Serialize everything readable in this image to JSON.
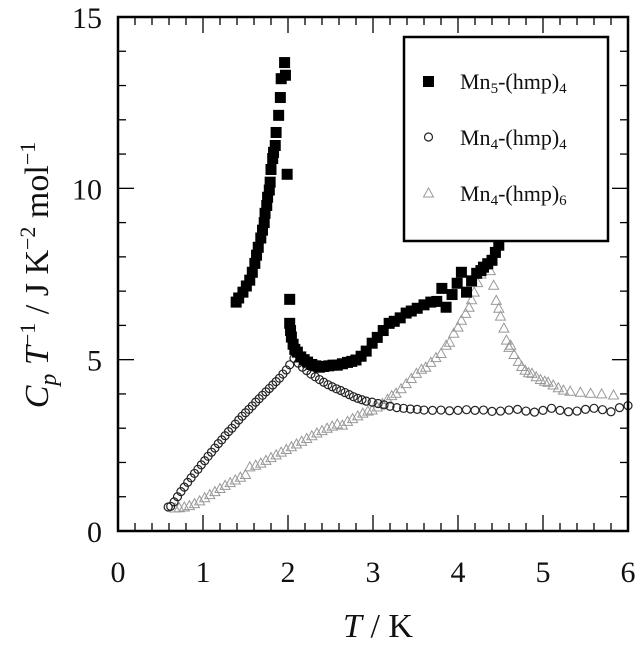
{
  "chart_data": {
    "type": "scatter",
    "title": "",
    "xlabel": {
      "symbol": "T",
      "unit": " / K"
    },
    "ylabel": {
      "symbol_c": "C",
      "sub_p": "p",
      "symbol_t": " T",
      "sup_m1": "−1",
      "rest": " / J K",
      "sup_m2": "−2",
      "mol": " mol",
      "sup_m1b": "−1"
    },
    "xlim": [
      0,
      6
    ],
    "ylim": [
      0,
      15
    ],
    "xticks": [
      "0",
      "1",
      "2",
      "3",
      "4",
      "5",
      "6"
    ],
    "yticks": [
      "0",
      "5",
      "10",
      "15"
    ],
    "grid": false,
    "legend_position": "top-right",
    "series": [
      {
        "name": "Mn5-(hmp)4",
        "legend": {
          "base": "Mn",
          "sub1": "5",
          "mid": "-(hmp)",
          "sub2": "4"
        },
        "marker": "square",
        "color": "#000000",
        "x": [
          1.39,
          1.42,
          1.47,
          1.51,
          1.55,
          1.58,
          1.61,
          1.63,
          1.65,
          1.68,
          1.7,
          1.72,
          1.73,
          1.75,
          1.76,
          1.78,
          1.79,
          1.8,
          1.82,
          1.83,
          1.85,
          1.86,
          1.89,
          1.91,
          1.92,
          1.96,
          1.97,
          1.99,
          2.02,
          2.02,
          2.03,
          2.04,
          2.06,
          2.08,
          2.11,
          2.15,
          2.19,
          2.23,
          2.28,
          2.33,
          2.37,
          2.42,
          2.48,
          2.53,
          2.58,
          2.64,
          2.7,
          2.75,
          2.8,
          2.86,
          2.92,
          2.99,
          3.05,
          3.12,
          3.19,
          3.25,
          3.32,
          3.39,
          3.45,
          3.52,
          3.6,
          3.68,
          3.75,
          3.81,
          3.86,
          3.93,
          3.99,
          4.04,
          4.1,
          4.16,
          4.22,
          4.27,
          4.3,
          4.35,
          4.4,
          4.44,
          4.48
        ],
        "y": [
          6.68,
          6.8,
          6.97,
          7.15,
          7.32,
          7.55,
          7.81,
          8.05,
          8.28,
          8.55,
          8.78,
          9.0,
          9.27,
          9.5,
          9.74,
          9.95,
          10.18,
          10.55,
          10.87,
          11.05,
          11.25,
          11.63,
          12.13,
          12.65,
          13.2,
          13.67,
          13.3,
          10.41,
          6.76,
          6.06,
          5.85,
          5.66,
          5.45,
          5.3,
          5.22,
          5.08,
          5.0,
          4.93,
          4.86,
          4.82,
          4.78,
          4.8,
          4.82,
          4.84,
          4.84,
          4.88,
          4.92,
          4.95,
          4.99,
          5.1,
          5.25,
          5.48,
          5.65,
          5.85,
          6.06,
          6.12,
          6.22,
          6.36,
          6.42,
          6.5,
          6.6,
          6.68,
          6.7,
          7.08,
          6.53,
          6.9,
          7.23,
          7.55,
          6.97,
          7.3,
          7.52,
          7.6,
          7.7,
          7.8,
          7.9,
          8.13,
          8.34
        ]
      },
      {
        "name": "Mn4-(hmp)4",
        "legend": {
          "base": "Mn",
          "sub1": "4",
          "mid": "-(hmp)",
          "sub2": "4"
        },
        "marker": "circle",
        "color": "#222222",
        "x": [
          0.59,
          0.62,
          0.66,
          0.7,
          0.74,
          0.78,
          0.82,
          0.86,
          0.9,
          0.94,
          0.98,
          1.02,
          1.06,
          1.1,
          1.14,
          1.18,
          1.22,
          1.26,
          1.3,
          1.34,
          1.38,
          1.42,
          1.46,
          1.5,
          1.54,
          1.58,
          1.62,
          1.66,
          1.7,
          1.74,
          1.78,
          1.82,
          1.86,
          1.9,
          1.94,
          1.98,
          2.02,
          2.07,
          2.12,
          2.17,
          2.22,
          2.27,
          2.32,
          2.37,
          2.42,
          2.47,
          2.52,
          2.57,
          2.62,
          2.67,
          2.72,
          2.77,
          2.82,
          2.87,
          2.92,
          2.99,
          3.06,
          3.13,
          3.2,
          3.28,
          3.36,
          3.44,
          3.52,
          3.6,
          3.7,
          3.8,
          3.9,
          4.0,
          4.1,
          4.2,
          4.3,
          4.4,
          4.5,
          4.6,
          4.7,
          4.8,
          4.9,
          5.0,
          5.1,
          5.2,
          5.3,
          5.4,
          5.5,
          5.6,
          5.7,
          5.8,
          5.9,
          6.0
        ],
        "y": [
          0.7,
          0.72,
          0.85,
          1.0,
          1.15,
          1.28,
          1.42,
          1.55,
          1.68,
          1.8,
          1.93,
          2.05,
          2.18,
          2.3,
          2.42,
          2.55,
          2.66,
          2.78,
          2.9,
          3.0,
          3.12,
          3.24,
          3.35,
          3.45,
          3.55,
          3.65,
          3.76,
          3.86,
          3.96,
          4.06,
          4.16,
          4.26,
          4.36,
          4.46,
          4.58,
          4.7,
          4.85,
          5.04,
          4.9,
          4.78,
          4.68,
          4.58,
          4.5,
          4.42,
          4.34,
          4.27,
          4.21,
          4.15,
          4.1,
          4.04,
          3.98,
          3.92,
          3.87,
          3.83,
          3.79,
          3.76,
          3.72,
          3.68,
          3.64,
          3.6,
          3.58,
          3.56,
          3.55,
          3.53,
          3.52,
          3.53,
          3.51,
          3.52,
          3.54,
          3.52,
          3.53,
          3.49,
          3.5,
          3.53,
          3.55,
          3.5,
          3.47,
          3.52,
          3.58,
          3.52,
          3.48,
          3.5,
          3.55,
          3.58,
          3.54,
          3.48,
          3.6,
          3.66
        ]
      },
      {
        "name": "Mn4-(hmp)6",
        "legend": {
          "base": "Mn",
          "sub1": "4",
          "mid": "-(hmp)",
          "sub2": "6"
        },
        "marker": "triangle",
        "color": "#999999",
        "x": [
          0.67,
          0.72,
          0.78,
          0.84,
          0.9,
          0.96,
          1.02,
          1.08,
          1.14,
          1.2,
          1.26,
          1.32,
          1.38,
          1.44,
          1.5,
          1.55,
          1.62,
          1.68,
          1.74,
          1.8,
          1.86,
          1.92,
          1.98,
          2.04,
          2.1,
          2.16,
          2.22,
          2.28,
          2.34,
          2.4,
          2.46,
          2.52,
          2.58,
          2.64,
          2.7,
          2.76,
          2.82,
          2.88,
          2.94,
          2.99,
          3.05,
          3.11,
          3.17,
          3.22,
          3.27,
          3.33,
          3.39,
          3.45,
          3.51,
          3.57,
          3.62,
          3.68,
          3.74,
          3.8,
          3.86,
          3.9,
          3.95,
          4.0,
          4.04,
          4.09,
          4.13,
          4.16,
          4.19,
          4.23,
          4.27,
          4.3,
          4.34,
          4.38,
          4.42,
          4.45,
          4.48,
          4.5,
          4.54,
          4.57,
          4.6,
          4.62,
          4.66,
          4.71,
          4.75,
          4.79,
          4.83,
          4.87,
          4.92,
          4.97,
          5.02,
          5.06,
          5.12,
          5.18,
          5.24,
          5.32,
          5.44,
          5.56,
          5.69,
          5.83
        ],
        "y": [
          0.67,
          0.68,
          0.7,
          0.74,
          0.8,
          0.88,
          0.97,
          1.06,
          1.15,
          1.24,
          1.33,
          1.41,
          1.49,
          1.57,
          1.65,
          1.87,
          1.92,
          1.98,
          2.06,
          2.14,
          2.22,
          2.3,
          2.38,
          2.46,
          2.54,
          2.62,
          2.7,
          2.78,
          2.86,
          2.93,
          3.0,
          3.06,
          3.12,
          3.09,
          3.2,
          3.28,
          3.36,
          3.44,
          3.5,
          3.53,
          3.62,
          3.72,
          3.84,
          3.95,
          4.02,
          4.15,
          4.3,
          4.45,
          4.6,
          4.72,
          4.78,
          4.92,
          5.06,
          5.18,
          5.42,
          5.51,
          5.77,
          5.95,
          6.15,
          6.35,
          6.53,
          6.75,
          6.97,
          7.25,
          7.5,
          7.67,
          7.76,
          7.6,
          7.17,
          6.73,
          6.5,
          6.27,
          5.92,
          5.57,
          5.36,
          5.42,
          5.15,
          4.95,
          4.8,
          4.69,
          4.62,
          4.6,
          4.5,
          4.42,
          4.37,
          4.34,
          4.26,
          4.18,
          4.11,
          4.08,
          4.05,
          4.02,
          4.0,
          3.97
        ]
      }
    ]
  }
}
